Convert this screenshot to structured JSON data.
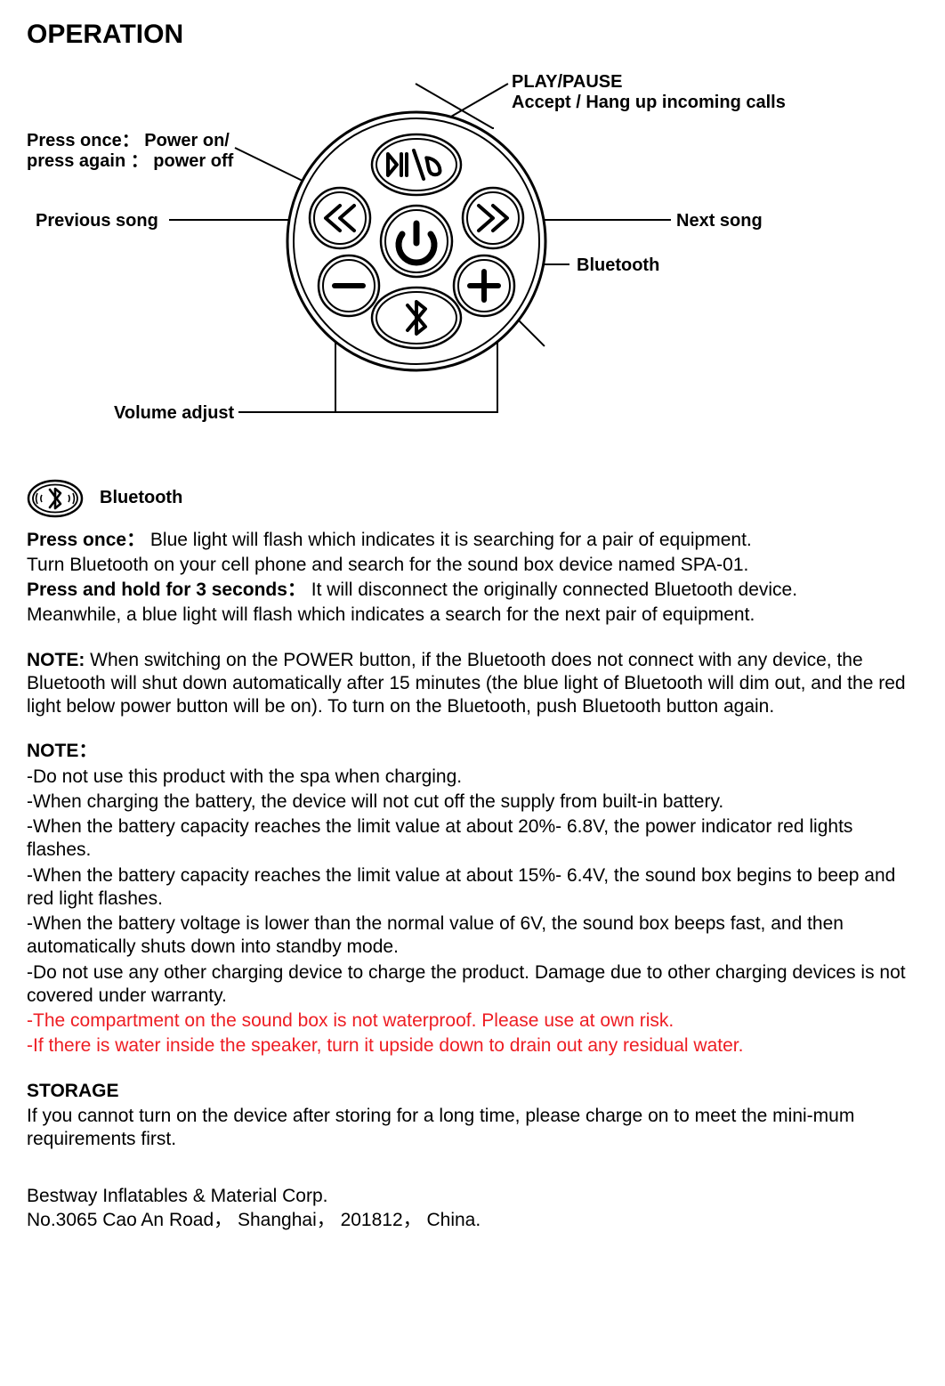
{
  "title": "OPERATION",
  "diagram": {
    "labels": {
      "play_pause_l1": "PLAY/PAUSE",
      "play_pause_l2": "Accept / Hang up incoming calls",
      "power_l1": "Press once：  Power on/",
      "power_l2": "press again ：  power off",
      "previous": "Previous song",
      "next": "Next song",
      "bluetooth": "Bluetooth",
      "volume": "Volume adjust"
    },
    "colors": {
      "stroke": "#000000",
      "bg": "#ffffff"
    }
  },
  "bt_section_label": "Bluetooth",
  "paragraphs": {
    "p1a_bold": "Press once：",
    "p1a_rest": "  Blue light will flash which indicates it is searching for a pair of equipment.",
    "p1b": "Turn Bluetooth on your cell phone and search for the sound box device named SPA-01.",
    "p1c_bold": "Press and hold for 3 seconds：",
    "p1c_rest": "   It will disconnect the originally connected Bluetooth device.",
    "p1d": "Meanwhile, a blue light will flash which indicates a search for the next pair of equipment.",
    "p2_bold": "NOTE:",
    "p2_rest": " When switching on the POWER button, if the Bluetooth does not connect with any device, the Bluetooth will shut down automatically after 15 minutes (the blue light of Bluetooth will dim out, and the red light below power button will be on). To turn on the Bluetooth, push Bluetooth button again.",
    "p3_head": "NOTE：",
    "p3_items": [
      "-Do not use this product with the spa when charging.",
      "-When charging the battery, the device will not cut off the supply from built-in battery.",
      "-When the battery capacity reaches the limit value at about 20%- 6.8V, the power indicator red lights flashes.",
      "-When the battery capacity reaches the limit value at about 15%- 6.4V, the sound box begins to beep and red light flashes.",
      "-When the battery voltage is lower than the normal value of 6V, the sound box beeps fast, and then automatically shuts down into standby mode.",
      "-Do not use any other charging device to charge the product. Damage due to other charging devices is not covered under warranty."
    ],
    "p3_red_items": [
      "-The compartment on the sound box is not waterproof. Please use at own risk.",
      "-If there is water inside the speaker, turn it upside down to drain out any residual water."
    ],
    "p4_head": "STORAGE",
    "p4_body": "If you cannot turn on the device after storing for a long time, please charge on to meet the mini-mum requirements first."
  },
  "footer": {
    "l1": "Bestway Inflatables & Material Corp.",
    "l2": "No.3065 Cao An Road， Shanghai， 201812， China."
  }
}
